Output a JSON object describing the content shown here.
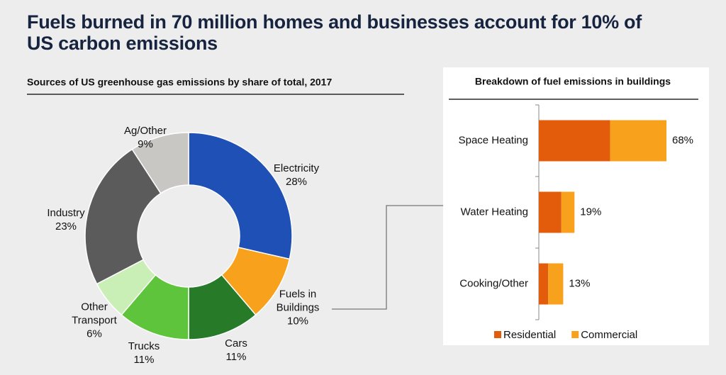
{
  "title": "Fuels burned in 70 million homes and businesses account for 10% of US carbon emissions",
  "chart_data": [
    {
      "type": "pie",
      "title": "Sources of US greenhouse gas emissions by share of total, 2017",
      "categories": [
        "Electricity",
        "Fuels in Buildings",
        "Cars",
        "Trucks",
        "Other Transport",
        "Industry",
        "Ag/Other"
      ],
      "values": [
        28,
        10,
        11,
        11,
        6,
        23,
        9
      ],
      "value_labels": [
        "28%",
        "10%",
        "11%",
        "11%",
        "6%",
        "23%",
        "9%"
      ],
      "colors": [
        "#1f50b5",
        "#f7a11c",
        "#267a28",
        "#5ec43c",
        "#c9efb6",
        "#5b5b5b",
        "#c9c7c3"
      ]
    },
    {
      "type": "bar",
      "orientation": "horizontal",
      "stacked": true,
      "title": "Breakdown of fuel emissions in buildings",
      "categories": [
        "Space Heating",
        "Water Heating",
        "Cooking/Other"
      ],
      "series": [
        {
          "name": "Residential",
          "color": "#e35c0b",
          "values": [
            38,
            12,
            5
          ]
        },
        {
          "name": "Commercial",
          "color": "#f7a11c",
          "values": [
            30,
            7,
            8
          ]
        }
      ],
      "totals": [
        68,
        19,
        13
      ],
      "total_labels": [
        "68%",
        "19%",
        "13%"
      ],
      "legend": "bottom"
    }
  ]
}
